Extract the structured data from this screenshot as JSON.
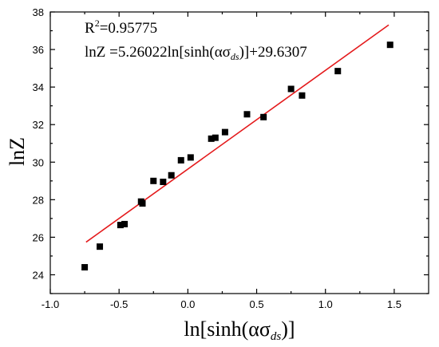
{
  "chart_data": {
    "type": "scatter",
    "xlabel": "ln[sinh(ασ",
    "xlabel_sub": "ds",
    "xlabel_tail": ")]",
    "ylabel": "lnZ",
    "xlim": [
      -1.0,
      1.75
    ],
    "ylim": [
      23.0,
      38.0
    ],
    "xticks": [
      -1.0,
      -0.5,
      0.0,
      0.5,
      1.0,
      1.5
    ],
    "xtick_labels": [
      "-1.0",
      "-0.5",
      "0.0",
      "0.5",
      "1.0",
      "1.5"
    ],
    "yticks": [
      24,
      26,
      28,
      30,
      32,
      34,
      36,
      38
    ],
    "ytick_labels": [
      "24",
      "26",
      "28",
      "30",
      "32",
      "34",
      "36",
      "38"
    ],
    "grid": false,
    "marker_color": "#000000",
    "fit_color": "#e41a1c",
    "points": [
      {
        "x": -0.75,
        "y": 24.4
      },
      {
        "x": -0.64,
        "y": 25.5
      },
      {
        "x": -0.49,
        "y": 26.65
      },
      {
        "x": -0.46,
        "y": 26.7
      },
      {
        "x": -0.34,
        "y": 27.9
      },
      {
        "x": -0.33,
        "y": 27.8
      },
      {
        "x": -0.25,
        "y": 29.0
      },
      {
        "x": -0.18,
        "y": 28.95
      },
      {
        "x": -0.12,
        "y": 29.3
      },
      {
        "x": -0.05,
        "y": 30.1
      },
      {
        "x": 0.02,
        "y": 30.25
      },
      {
        "x": 0.17,
        "y": 31.25
      },
      {
        "x": 0.2,
        "y": 31.3
      },
      {
        "x": 0.27,
        "y": 31.6
      },
      {
        "x": 0.43,
        "y": 32.55
      },
      {
        "x": 0.55,
        "y": 32.4
      },
      {
        "x": 0.75,
        "y": 33.9
      },
      {
        "x": 0.83,
        "y": 33.55
      },
      {
        "x": 1.09,
        "y": 34.85
      },
      {
        "x": 1.47,
        "y": 36.25
      }
    ],
    "fit": {
      "slope": 5.26022,
      "intercept": 29.6307,
      "x_range": [
        -0.74,
        1.46
      ]
    },
    "annotations": {
      "r2_prefix": "R",
      "r2_sup": "2",
      "r2_value": "=0.95775",
      "eq_part1": "lnZ =5.26022ln[sinh(ασ",
      "eq_sub": "ds",
      "eq_part2": ")]+29.6307"
    }
  }
}
